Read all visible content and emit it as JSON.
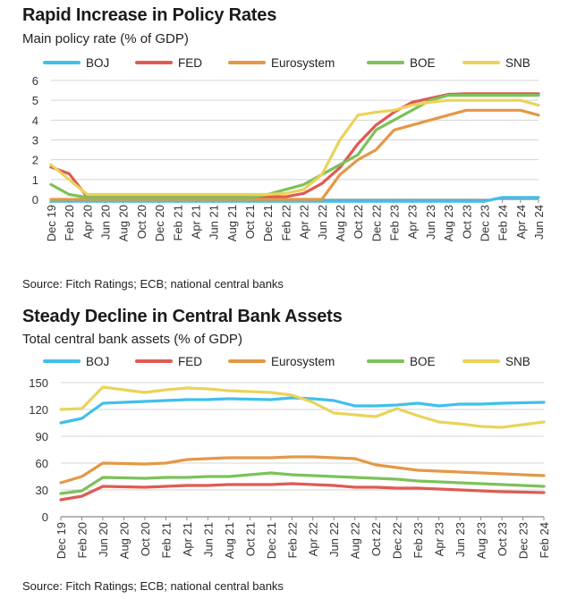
{
  "colors": {
    "BOJ": "#3fc0ec",
    "FED": "#e05a52",
    "Eurosystem": "#e49845",
    "BOE": "#7cc25a",
    "SNB": "#ead35b",
    "grid": "#d4d4d4",
    "axis": "#8a8a8a"
  },
  "chart_data": [
    {
      "type": "line",
      "title": "Rapid Increase in Policy Rates",
      "subtitle": "Main policy rate (% of GDP)",
      "source": "Source: Fitch Ratings; ECB; national central banks",
      "legend_position": "top",
      "grid": true,
      "ylim": [
        0,
        6
      ],
      "yticks": [
        0,
        1,
        2,
        3,
        4,
        5,
        6
      ],
      "ytick_labels": [
        "0",
        "1",
        "2",
        "3",
        "4",
        "5",
        "6"
      ],
      "x_labels": [
        "Dec 19",
        "Feb 20",
        "Apr 20",
        "Jun 20",
        "Aug 20",
        "Oct 20",
        "Dec 20",
        "Feb 21",
        "Apr 21",
        "Jun 21",
        "Aug 21",
        "Oct 21",
        "Dec 21",
        "Feb 22",
        "Apr 22",
        "Jun 22",
        "Aug 22",
        "Oct 22",
        "Dec 22",
        "Feb 23",
        "Apr 23",
        "Jun 23",
        "Aug 23",
        "Oct 23",
        "Dec 23",
        "Feb 24",
        "Apr 24",
        "Jun 24"
      ],
      "series": [
        {
          "name": "BOJ",
          "color_key": "BOJ",
          "values": [
            -0.1,
            -0.1,
            -0.1,
            -0.1,
            -0.1,
            -0.1,
            -0.1,
            -0.1,
            -0.1,
            -0.1,
            -0.1,
            -0.1,
            -0.1,
            -0.1,
            -0.1,
            -0.1,
            -0.1,
            -0.1,
            -0.1,
            -0.1,
            -0.1,
            -0.1,
            -0.1,
            -0.1,
            -0.1,
            0.1,
            0.1,
            0.1
          ]
        },
        {
          "name": "FED",
          "color_key": "FED",
          "values": [
            1.63,
            1.3,
            0.13,
            0.13,
            0.13,
            0.13,
            0.13,
            0.13,
            0.13,
            0.13,
            0.13,
            0.13,
            0.13,
            0.13,
            0.3,
            0.8,
            1.6,
            2.8,
            3.75,
            4.4,
            4.9,
            5.1,
            5.3,
            5.33,
            5.33,
            5.33,
            5.33,
            5.33
          ]
        },
        {
          "name": "Eurosystem",
          "color_key": "Eurosystem",
          "values": [
            0,
            0,
            0,
            0,
            0,
            0,
            0,
            0,
            0,
            0,
            0,
            0,
            0,
            0,
            0,
            0,
            1.25,
            2.0,
            2.5,
            3.5,
            3.75,
            4.0,
            4.25,
            4.5,
            4.5,
            4.5,
            4.5,
            4.25
          ]
        },
        {
          "name": "BOE",
          "color_key": "BOE",
          "values": [
            0.75,
            0.25,
            0.1,
            0.1,
            0.1,
            0.1,
            0.1,
            0.1,
            0.1,
            0.1,
            0.1,
            0.1,
            0.25,
            0.5,
            0.75,
            1.25,
            1.75,
            2.25,
            3.5,
            4.0,
            4.5,
            5.0,
            5.25,
            5.25,
            5.25,
            5.25,
            5.25,
            5.25
          ]
        },
        {
          "name": "SNB",
          "color_key": "SNB",
          "values": [
            1.75,
            1.0,
            0.25,
            0.25,
            0.25,
            0.25,
            0.25,
            0.25,
            0.25,
            0.25,
            0.25,
            0.25,
            0.25,
            0.3,
            0.5,
            1.25,
            3.0,
            4.25,
            4.4,
            4.5,
            4.75,
            4.9,
            5.0,
            5.0,
            5.0,
            5.0,
            5.0,
            4.75
          ]
        }
      ]
    },
    {
      "type": "line",
      "title": "Steady Decline in Central Bank Assets",
      "subtitle": "Total central bank assets (% of GDP)",
      "source": "Source: Fitch Ratings; ECB; national central banks",
      "legend_position": "top",
      "grid": true,
      "ylim": [
        0,
        150
      ],
      "yticks": [
        0,
        30,
        60,
        90,
        120,
        150
      ],
      "ytick_labels": [
        "0",
        "30",
        "60",
        "90",
        "120",
        "150"
      ],
      "x_labels": [
        "Dec 19",
        "Feb 20",
        "Jun 20",
        "Aug 20",
        "Oct 20",
        "Feb 21",
        "Apr 21",
        "Jun 21",
        "Aug 21",
        "Oct 21",
        "Dec 21",
        "Feb 22",
        "Apr 22",
        "Jun 22",
        "Aug 22",
        "Oct 22",
        "Dec 22",
        "Feb 23",
        "Apr 23",
        "Jun 23",
        "Aug 23",
        "Oct 23",
        "Dec 23",
        "Feb 24"
      ],
      "series": [
        {
          "name": "BOJ",
          "color_key": "BOJ",
          "values": [
            105,
            110,
            127,
            null,
            129,
            130,
            131,
            131,
            132,
            null,
            131,
            133,
            132,
            130,
            124,
            124,
            125,
            127,
            124,
            126,
            126,
            127,
            null,
            128
          ]
        },
        {
          "name": "FED",
          "color_key": "FED",
          "values": [
            19,
            23,
            34,
            null,
            33,
            34,
            35,
            35,
            36,
            null,
            36,
            37,
            36,
            35,
            33,
            33,
            32,
            32,
            31,
            30,
            29,
            28,
            null,
            27
          ]
        },
        {
          "name": "Eurosystem",
          "color_key": "Eurosystem",
          "values": [
            38,
            45,
            60,
            null,
            59,
            60,
            64,
            65,
            66,
            null,
            66,
            67,
            67,
            66,
            65,
            58,
            55,
            52,
            51,
            50,
            49,
            48,
            null,
            46
          ]
        },
        {
          "name": "BOE",
          "color_key": "BOE",
          "values": [
            26,
            29,
            44,
            null,
            43,
            44,
            44,
            45,
            45,
            null,
            49,
            47,
            46,
            45,
            44,
            43,
            42,
            40,
            39,
            38,
            37,
            36,
            null,
            34
          ]
        },
        {
          "name": "SNB",
          "color_key": "SNB",
          "values": [
            120,
            121,
            145,
            null,
            139,
            142,
            144,
            143,
            141,
            null,
            139,
            136,
            128,
            116,
            114,
            112,
            121,
            113,
            106,
            104,
            101,
            100,
            null,
            106
          ]
        }
      ]
    }
  ]
}
